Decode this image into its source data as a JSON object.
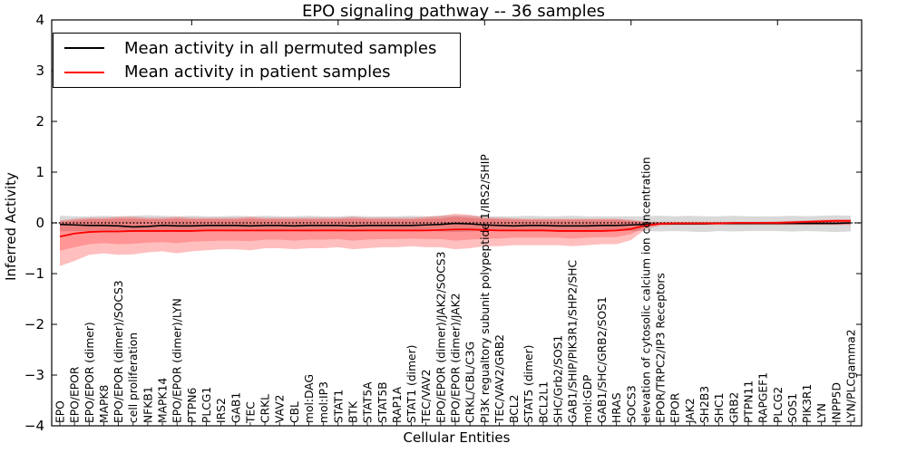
{
  "chart_data": {
    "type": "line",
    "title": "EPO signaling pathway -- 36 samples",
    "xlabel": "Cellular Entities",
    "ylabel": "Inferred Activity",
    "ylim": [
      -4,
      4
    ],
    "yticks": [
      4,
      3,
      2,
      1,
      0,
      -1,
      -2,
      -3,
      -4
    ],
    "grid": false,
    "legend_position": "upper left",
    "reference_line": {
      "value": 0,
      "style": "dotted",
      "color": "#000000"
    },
    "categories": [
      "EPO",
      "EPO/EPOR",
      "EPO/EPOR (dimer)",
      "MAPK8",
      "EPO/EPOR (dimer)/SOCS3",
      "cell proliferation",
      "NFKB1",
      "MAPK14",
      "EPO/EPOR (dimer)/LYN",
      "PTPN6",
      "PLCG1",
      "IRS2",
      "GAB1",
      "TEC",
      "CRKL",
      "VAV2",
      "CBL",
      "mol:DAG",
      "mol:IP3",
      "STAT1",
      "BTK",
      "STAT5A",
      "STAT5B",
      "RAP1A",
      "STAT1 (dimer)",
      "TEC/VAV2",
      "EPO/EPOR (dimer)/JAK2/SOCS3",
      "EPO/EPOR (dimer)/JAK2",
      "CRKL/CBL/C3G",
      "PI3K regualtory subunit polypeptide 1/IRS2/SHIP",
      "TEC/VAV2/GRB2",
      "BCL2",
      "STAT5 (dimer)",
      "BCL2L1",
      "SHC/Grb2/SOS1",
      "GAB1/SHIP/PIK3R1/SHP2/SHC",
      "mol:GDP",
      "GAB1/SHC/GRB2/SOS1",
      "HRAS",
      "SOCS3",
      "elevation of cytosolic calcium ion concentration",
      "EPOR/TRPC2/IP3 Receptors",
      "EPOR",
      "JAK2",
      "SH2B3",
      "SHC1",
      "GRB2",
      "PTPN11",
      "RAPGEF1",
      "PLCG2",
      "SOS1",
      "PIK3R1",
      "LYN",
      "INPP5D",
      "LYN/PLCgamma2"
    ],
    "series": [
      {
        "id": "permuted-mean",
        "name": "Mean activity in all permuted samples",
        "color": "#000000",
        "style": "solid",
        "values": [
          -0.03,
          -0.04,
          -0.05,
          -0.05,
          -0.06,
          -0.08,
          -0.07,
          -0.05,
          -0.06,
          -0.06,
          -0.05,
          -0.05,
          -0.05,
          -0.06,
          -0.05,
          -0.05,
          -0.06,
          -0.05,
          -0.05,
          -0.05,
          -0.06,
          -0.05,
          -0.05,
          -0.05,
          -0.05,
          -0.04,
          -0.03,
          -0.01,
          -0.02,
          -0.04,
          -0.05,
          -0.06,
          -0.05,
          -0.05,
          -0.06,
          -0.06,
          -0.06,
          -0.05,
          -0.05,
          -0.04,
          -0.03,
          -0.02,
          -0.02,
          -0.02,
          -0.02,
          -0.01,
          -0.01,
          -0.01,
          -0.01,
          -0.01,
          -0.01,
          -0.01,
          -0.01,
          -0.01,
          0.0
        ]
      },
      {
        "id": "patient-mean",
        "name": "Mean activity in patient samples",
        "color": "#ff0000",
        "style": "solid",
        "values": [
          -0.27,
          -0.21,
          -0.18,
          -0.17,
          -0.17,
          -0.16,
          -0.16,
          -0.16,
          -0.16,
          -0.16,
          -0.15,
          -0.15,
          -0.15,
          -0.15,
          -0.15,
          -0.15,
          -0.15,
          -0.15,
          -0.15,
          -0.15,
          -0.15,
          -0.15,
          -0.15,
          -0.15,
          -0.15,
          -0.15,
          -0.14,
          -0.13,
          -0.13,
          -0.14,
          -0.15,
          -0.15,
          -0.15,
          -0.15,
          -0.16,
          -0.16,
          -0.16,
          -0.16,
          -0.15,
          -0.12,
          -0.05,
          -0.02,
          -0.01,
          -0.01,
          -0.01,
          -0.01,
          0.0,
          0.0,
          0.0,
          0.0,
          0.01,
          0.02,
          0.03,
          0.04,
          0.04
        ]
      }
    ],
    "bands": [
      {
        "id": "permuted-std-band",
        "series": "Mean activity in all permuted samples",
        "color": "#000000",
        "opacity": 0.15,
        "upper": [
          0.14,
          0.13,
          0.13,
          0.14,
          0.13,
          0.14,
          0.15,
          0.14,
          0.13,
          0.14,
          0.13,
          0.13,
          0.14,
          0.13,
          0.14,
          0.13,
          0.13,
          0.14,
          0.13,
          0.13,
          0.14,
          0.13,
          0.13,
          0.13,
          0.14,
          0.13,
          0.14,
          0.15,
          0.14,
          0.13,
          0.13,
          0.13,
          0.14,
          0.13,
          0.13,
          0.14,
          0.13,
          0.13,
          0.13,
          0.13,
          0.13,
          0.14,
          0.13,
          0.14,
          0.13,
          0.13,
          0.14,
          0.13,
          0.13,
          0.13,
          0.14,
          0.13,
          0.14,
          0.15,
          0.14
        ],
        "lower": [
          -0.17,
          -0.16,
          -0.16,
          -0.17,
          -0.16,
          -0.17,
          -0.18,
          -0.17,
          -0.16,
          -0.17,
          -0.16,
          -0.16,
          -0.17,
          -0.16,
          -0.17,
          -0.16,
          -0.16,
          -0.17,
          -0.16,
          -0.16,
          -0.17,
          -0.16,
          -0.16,
          -0.16,
          -0.17,
          -0.16,
          -0.17,
          -0.18,
          -0.17,
          -0.16,
          -0.16,
          -0.16,
          -0.17,
          -0.16,
          -0.16,
          -0.17,
          -0.16,
          -0.16,
          -0.16,
          -0.16,
          -0.16,
          -0.17,
          -0.16,
          -0.17,
          -0.18,
          -0.16,
          -0.17,
          -0.16,
          -0.16,
          -0.16,
          -0.17,
          -0.16,
          -0.17,
          -0.18,
          -0.17
        ]
      },
      {
        "id": "patient-outer-band",
        "series": "Mean activity in patient samples",
        "color": "#ff0000",
        "opacity": 0.25,
        "upper": [
          0.05,
          0.08,
          0.1,
          0.1,
          0.12,
          0.12,
          0.1,
          0.1,
          0.12,
          0.1,
          0.1,
          0.1,
          0.1,
          0.12,
          0.1,
          0.1,
          0.1,
          0.1,
          0.1,
          0.1,
          0.12,
          0.1,
          0.1,
          0.1,
          0.1,
          0.12,
          0.14,
          0.18,
          0.16,
          0.11,
          0.1,
          0.09,
          0.08,
          0.08,
          0.08,
          0.08,
          0.08,
          0.08,
          0.08,
          0.06,
          0.03,
          0.02,
          0.02,
          0.02,
          0.02,
          0.02,
          0.02,
          0.02,
          0.02,
          0.03,
          0.04,
          0.05,
          0.06,
          0.07,
          0.07
        ],
        "lower": [
          -0.85,
          -0.75,
          -0.63,
          -0.6,
          -0.63,
          -0.62,
          -0.58,
          -0.56,
          -0.6,
          -0.56,
          -0.54,
          -0.52,
          -0.52,
          -0.54,
          -0.5,
          -0.5,
          -0.52,
          -0.5,
          -0.5,
          -0.48,
          -0.52,
          -0.5,
          -0.48,
          -0.48,
          -0.46,
          -0.48,
          -0.48,
          -0.52,
          -0.5,
          -0.46,
          -0.46,
          -0.44,
          -0.44,
          -0.44,
          -0.44,
          -0.46,
          -0.44,
          -0.42,
          -0.42,
          -0.34,
          -0.12,
          -0.05,
          -0.04,
          -0.04,
          -0.04,
          -0.04,
          -0.04,
          -0.04,
          -0.04,
          -0.04,
          -0.04,
          -0.04,
          -0.04,
          -0.04,
          -0.04
        ]
      },
      {
        "id": "patient-inner-band",
        "series": "Mean activity in patient samples",
        "color": "#ff0000",
        "opacity": 0.22,
        "upper": [
          0.02,
          0.05,
          0.07,
          0.07,
          0.08,
          0.08,
          0.07,
          0.07,
          0.08,
          0.07,
          0.07,
          0.07,
          0.07,
          0.08,
          0.07,
          0.07,
          0.07,
          0.07,
          0.07,
          0.07,
          0.08,
          0.07,
          0.07,
          0.07,
          0.07,
          0.08,
          0.09,
          0.12,
          0.1,
          0.08,
          0.07,
          0.06,
          0.06,
          0.06,
          0.06,
          0.06,
          0.06,
          0.06,
          0.06,
          0.04,
          0.02,
          0.01,
          0.01,
          0.01,
          0.01,
          0.01,
          0.01,
          0.01,
          0.01,
          0.02,
          0.03,
          0.04,
          0.04,
          0.05,
          0.05
        ],
        "lower": [
          -0.55,
          -0.48,
          -0.42,
          -0.4,
          -0.42,
          -0.41,
          -0.39,
          -0.38,
          -0.4,
          -0.37,
          -0.36,
          -0.35,
          -0.35,
          -0.36,
          -0.33,
          -0.33,
          -0.35,
          -0.33,
          -0.33,
          -0.32,
          -0.35,
          -0.33,
          -0.32,
          -0.32,
          -0.31,
          -0.32,
          -0.32,
          -0.35,
          -0.33,
          -0.31,
          -0.31,
          -0.29,
          -0.29,
          -0.29,
          -0.29,
          -0.31,
          -0.29,
          -0.28,
          -0.28,
          -0.22,
          -0.08,
          -0.03,
          -0.03,
          -0.03,
          -0.03,
          -0.03,
          -0.03,
          -0.03,
          -0.03,
          -0.03,
          -0.03,
          -0.03,
          -0.03,
          -0.03,
          -0.03
        ]
      }
    ]
  }
}
